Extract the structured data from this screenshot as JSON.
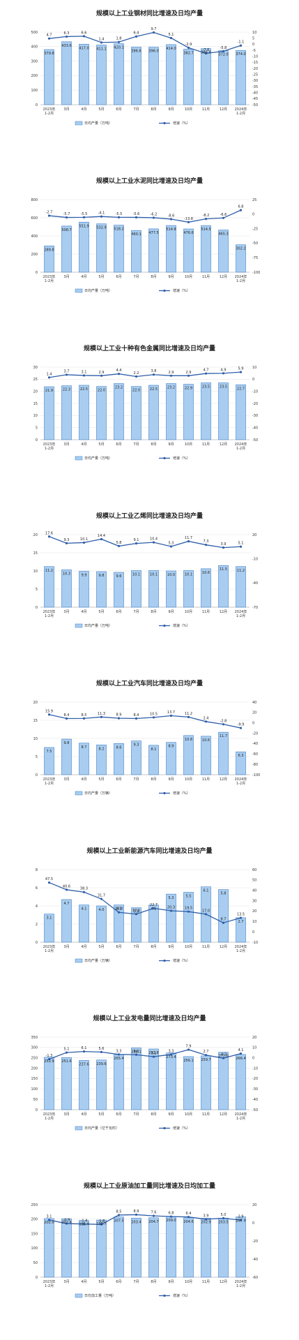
{
  "style": {
    "bar_fill": "#a9cdf0",
    "bar_stroke": "#3f7fc9",
    "line_color": "#2f5ea8",
    "grid_color": "#e6e6e6"
  },
  "chart_data": [
    {
      "type": "bar",
      "title": "规模以上工业钢材同比增速及日均产量",
      "categories": [
        "2023年\n1-2月",
        "3月",
        "4月",
        "5月",
        "6月",
        "7月",
        "8月",
        "9月",
        "10月",
        "11月",
        "12月",
        "2024年\n1-2月"
      ],
      "series": [
        {
          "name": "日均产量（万吨）",
          "type": "bar",
          "axis": "left",
          "values": [
            379.8,
            433.6,
            417.0,
            411.1,
            420.1,
            396.6,
            396.0,
            414.0,
            382.7,
            386.4,
            372.0,
            374.0
          ]
        },
        {
          "name": "增速（%）",
          "type": "line",
          "axis": "right",
          "values": [
            4.7,
            6.3,
            6.6,
            1.4,
            1.8,
            6.4,
            9.7,
            5.1,
            -2.9,
            -7.6,
            -5.8,
            -1.1
          ]
        }
      ],
      "ylim_left": [
        0,
        500
      ],
      "yticks_left": [
        0,
        100,
        200,
        300,
        400,
        500
      ],
      "ylim_right": [
        -50,
        10
      ],
      "yticks_right": [
        -50,
        -45,
        -40,
        -35,
        -30,
        -25,
        -20,
        -15,
        -10,
        -5,
        0,
        5,
        10
      ],
      "legend_position": "bottom"
    },
    {
      "type": "bar",
      "title": "规模以上工业水泥同比增速及日均产量",
      "categories": [
        "2023年\n1-2月",
        "3月",
        "4月",
        "5月",
        "6月",
        "7月",
        "8月",
        "9月",
        "10月",
        "11月",
        "12月",
        "2024年\n1-2月"
      ],
      "series": [
        {
          "name": "日均产量（万吨）",
          "type": "bar",
          "axis": "left",
          "values": [
            289.8,
            508.7,
            551.9,
            532.9,
            518.2,
            460.1,
            477.5,
            514.8,
            476.6,
            514.5,
            465.3,
            302.2
          ]
        },
        {
          "name": "增速（%）",
          "type": "line",
          "axis": "right",
          "values": [
            -2.7,
            -5.7,
            -5.5,
            -4.1,
            -5.5,
            -5.6,
            -6.2,
            -8.6,
            -13.8,
            -8.2,
            -6.6,
            6.8
          ]
        }
      ],
      "ylim_left": [
        0,
        800
      ],
      "yticks_left": [
        0,
        200,
        400,
        600,
        800
      ],
      "ylim_right": [
        -100,
        25
      ],
      "yticks_right": [
        -100,
        -75,
        -50,
        -25,
        0,
        25
      ],
      "legend_position": "bottom"
    },
    {
      "type": "bar",
      "title": "规模以上工业十种有色金属同比增速及日均产量",
      "categories": [
        "2023年\n1-2月",
        "3月",
        "4月",
        "5月",
        "6月",
        "7月",
        "8月",
        "9月",
        "10月",
        "11月",
        "12月",
        "2024年\n1-2月"
      ],
      "series": [
        {
          "name": "日均产量（万吨）",
          "type": "bar",
          "axis": "left",
          "values": [
            21.9,
            22.3,
            22.5,
            22.0,
            23.2,
            22.0,
            22.5,
            23.2,
            22.9,
            23.5,
            23.5,
            22.7
          ]
        },
        {
          "name": "增速（%）",
          "type": "line",
          "axis": "right",
          "values": [
            1.4,
            3.7,
            3.1,
            2.9,
            4.4,
            2.2,
            3.8,
            2.9,
            2.9,
            4.7,
            4.9,
            5.9
          ]
        }
      ],
      "ylim_left": [
        0,
        30
      ],
      "yticks_left": [
        0,
        5,
        10,
        15,
        20,
        25,
        30
      ],
      "ylim_right": [
        -50,
        10
      ],
      "yticks_right": [
        -50,
        -40,
        -30,
        -20,
        -10,
        0,
        10
      ],
      "legend_position": "bottom"
    },
    {
      "type": "bar",
      "title": "规模以上工业乙烯同比增速及日均产量",
      "categories": [
        "2023年\n1-2月",
        "3月",
        "4月",
        "5月",
        "6月",
        "7月",
        "8月",
        "9月",
        "10月",
        "11月",
        "12月",
        "2024年\n1-2月"
      ],
      "series": [
        {
          "name": "日均产量（万吨）",
          "type": "bar",
          "axis": "left",
          "values": [
            11.2,
            10.3,
            9.9,
            9.8,
            9.6,
            10.1,
            10.1,
            10.0,
            10.1,
            10.6,
            11.5,
            11.2
          ]
        },
        {
          "name": "增速（%）",
          "type": "line",
          "axis": "right",
          "values": [
            17.6,
            9.3,
            10.1,
            14.4,
            5.8,
            9.1,
            10.4,
            5.3,
            11.7,
            7.3,
            3.9,
            5.1
          ]
        }
      ],
      "ylim_left": [
        0,
        20
      ],
      "yticks_left": [
        0,
        5,
        10,
        15,
        20
      ],
      "ylim_right": [
        -70,
        20
      ],
      "yticks_right": [
        -70,
        -40,
        -10,
        20
      ],
      "legend_position": "bottom"
    },
    {
      "type": "bar",
      "title": "规模以上工业汽车同比增速及日均产量",
      "categories": [
        "2023年\n1-2月",
        "3月",
        "4月",
        "5月",
        "6月",
        "7月",
        "8月",
        "9月",
        "10月",
        "11月",
        "12月",
        "2024年\n1-2月"
      ],
      "series": [
        {
          "name": "日均产量（万辆）",
          "type": "bar",
          "axis": "left",
          "values": [
            7.5,
            9.8,
            8.7,
            8.2,
            8.6,
            9.3,
            8.1,
            8.9,
            10.8,
            10.6,
            11.7,
            6.3
          ]
        },
        {
          "name": "增速（%）",
          "type": "line",
          "axis": "right",
          "values": [
            15.9,
            8.4,
            8.5,
            11.3,
            8.9,
            8.4,
            10.5,
            13.7,
            11.2,
            2.4,
            -2.8,
            -9.9
          ]
        }
      ],
      "ylim_left": [
        0,
        20
      ],
      "yticks_left": [
        0,
        5,
        10,
        15,
        20
      ],
      "ylim_right": [
        -100,
        40
      ],
      "yticks_right": [
        -100,
        -80,
        -60,
        -40,
        -20,
        0,
        20,
        40
      ],
      "legend_position": "bottom"
    },
    {
      "type": "bar",
      "title": "规模以上工业新能源汽车同比增速及日均产量",
      "categories": [
        "2023年\n1-2月",
        "3月",
        "4月",
        "5月",
        "6月",
        "7月",
        "8月",
        "9月",
        "10月",
        "11月",
        "12月",
        "2024年\n1-2月"
      ],
      "series": [
        {
          "name": "日均产量（万辆）",
          "type": "bar",
          "axis": "left",
          "values": [
            3.1,
            4.7,
            4.1,
            4.0,
            4.1,
            3.8,
            4.1,
            5.3,
            5.5,
            6.1,
            5.8,
            2.7
          ]
        },
        {
          "name": "增速（%）",
          "type": "line",
          "axis": "right",
          "values": [
            47.5,
            40.6,
            38.3,
            31.7,
            18.8,
            17.1,
            22.7,
            20.3,
            19.5,
            17.0,
            8.7,
            13.5
          ]
        }
      ],
      "ylim_left": [
        0,
        8
      ],
      "yticks_left": [
        0,
        2,
        4,
        6,
        8
      ],
      "ylim_right": [
        -10,
        60
      ],
      "yticks_right": [
        -10,
        0,
        10,
        20,
        30,
        40,
        50,
        60
      ],
      "legend_position": "bottom"
    },
    {
      "type": "bar",
      "title": "规模以上工业发电量同比增速及日均产量",
      "categories": [
        "2023年\n1-2月",
        "3月",
        "4月",
        "5月",
        "6月",
        "7月",
        "8月",
        "9月",
        "10月",
        "11月",
        "12月",
        "2024年\n1-2月"
      ],
      "series": [
        {
          "name": "日均产量（亿千瓦时）",
          "type": "bar",
          "axis": "left",
          "values": [
            252.9,
            251.6,
            237.6,
            239.6,
            265.4,
            298.1,
            292.8,
            273.4,
            256.1,
            259.7,
            277.0,
            266.4
          ]
        },
        {
          "name": "增速（%）",
          "type": "line",
          "axis": "right",
          "values": [
            -1.3,
            5.1,
            6.1,
            5.6,
            3.3,
            3.0,
            1.1,
            3.3,
            7.9,
            2.7,
            -0.3,
            4.1
          ]
        }
      ],
      "ylim_left": [
        0,
        350
      ],
      "yticks_left": [
        0,
        50,
        100,
        150,
        200,
        250,
        300,
        350
      ],
      "ylim_right": [
        -50,
        20
      ],
      "yticks_right": [
        -50,
        -40,
        -30,
        -20,
        -10,
        0,
        10,
        20
      ],
      "legend_position": "bottom"
    },
    {
      "type": "bar",
      "title": "规模以上工业原油加工量同比增速及日均加工量",
      "categories": [
        "2023年\n1-2月",
        "3月",
        "4月",
        "5月",
        "6月",
        "7月",
        "8月",
        "9月",
        "10月",
        "11月",
        "12月",
        "2024年\n1-2月"
      ],
      "series": [
        {
          "name": "日均加工量（万吨）",
          "type": "bar",
          "axis": "left",
          "values": [
            202.0,
            201.4,
            195.4,
            196.7,
            207.5,
            203.4,
            204.7,
            209.0,
            204.6,
            202.9,
            203.5,
            207.9
          ]
        },
        {
          "name": "增速（%）",
          "type": "line",
          "axis": "right",
          "values": [
            3.1,
            -0.9,
            -1.4,
            -1.8,
            8.5,
            8.9,
            7.6,
            6.8,
            6.4,
            3.9,
            5.0,
            2.9
          ]
        }
      ],
      "ylim_left": [
        0,
        250
      ],
      "yticks_left": [
        0,
        50,
        100,
        150,
        200,
        250
      ],
      "ylim_right": [
        -60,
        20
      ],
      "yticks_right": [
        -60,
        -40,
        -20,
        0,
        20
      ],
      "legend_position": "bottom"
    }
  ]
}
